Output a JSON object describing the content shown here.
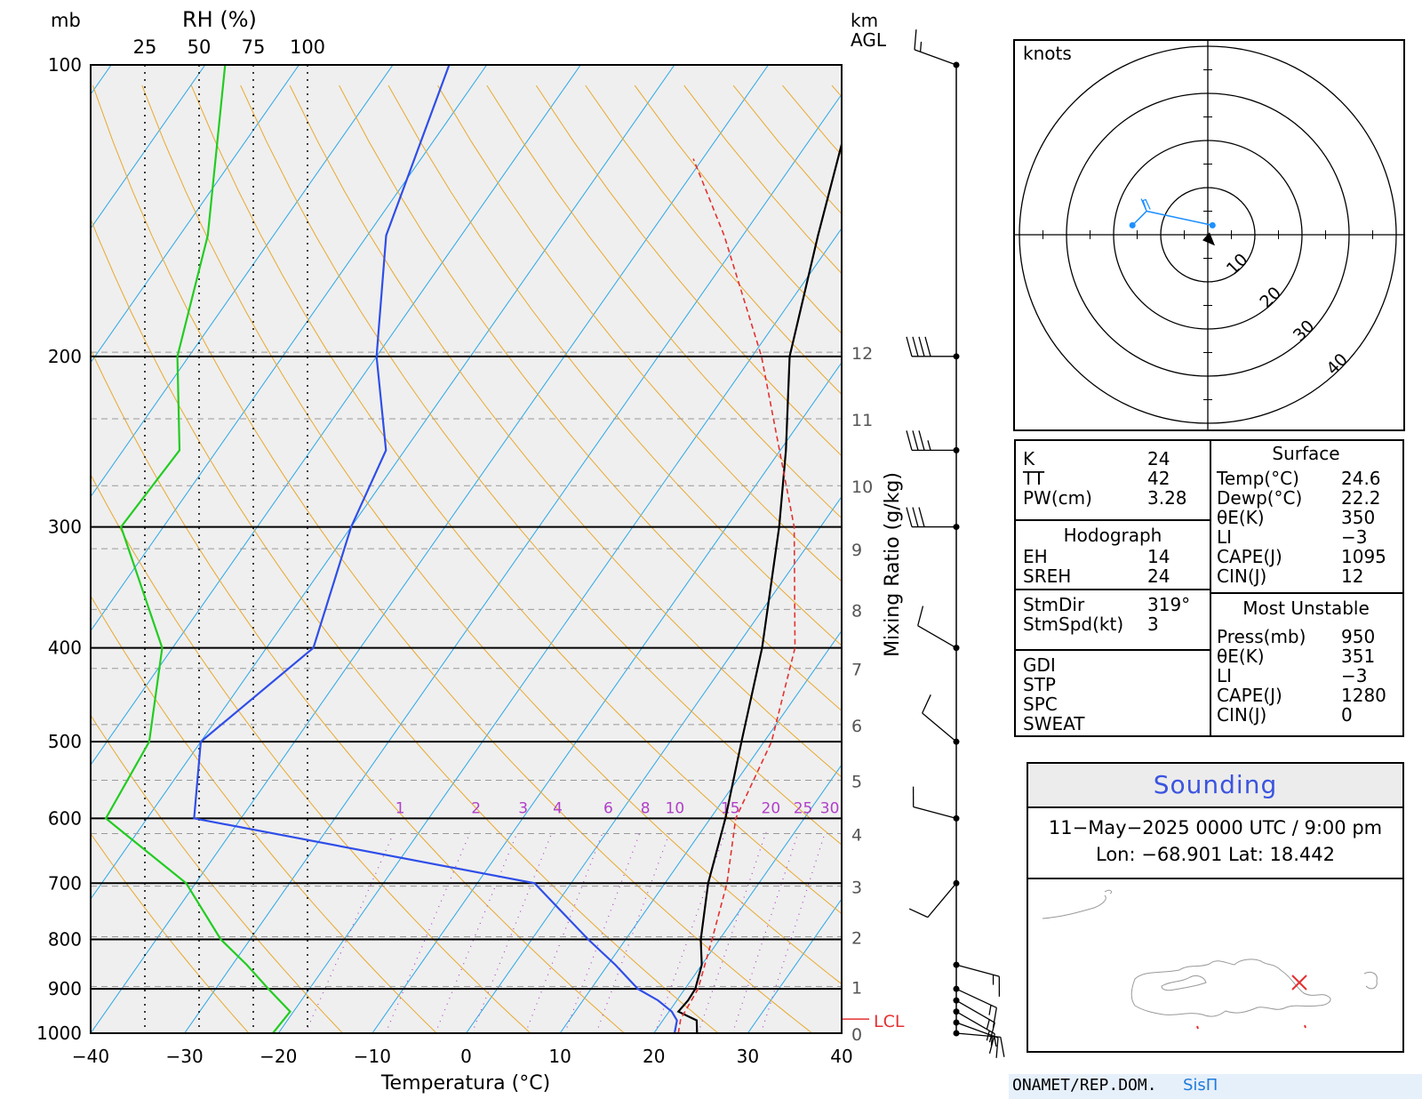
{
  "chart_data": {
    "type": "line",
    "subtype": "skew-T log-P sounding",
    "xlabel": "Temperatura (°C)",
    "ylabel_units": "mb",
    "rh_label": "RH (%)",
    "rh_ticks": [
      "25",
      "50",
      "75",
      "100"
    ],
    "km_label_top": "km",
    "km_label_bottom": "AGL",
    "mixing_ratio_label": "Mixing Ratio (g/kg)",
    "x_ticks": [
      -40,
      -30,
      -20,
      -10,
      0,
      10,
      20,
      30,
      40
    ],
    "xlim": [
      -40,
      40
    ],
    "pressure_levels": [
      100,
      200,
      300,
      400,
      500,
      600,
      700,
      800,
      900,
      1000
    ],
    "ylim_mb": [
      1000,
      100
    ],
    "height_km_labels": [
      "12",
      "11",
      "10",
      "9",
      "8",
      "7",
      "6",
      "5",
      "4",
      "3",
      "2",
      "1",
      "0"
    ],
    "mixing_ratio_values": [
      "1",
      "2",
      "3",
      "4",
      "6",
      "8",
      "10",
      "15",
      "20",
      "25",
      "30"
    ],
    "lcl_label": "LCL",
    "lcl_pressure_mb": 967,
    "series": [
      {
        "key": "temperature",
        "color": "#000000",
        "points": [
          [
            1000,
            24.6
          ],
          [
            970,
            23.6
          ],
          [
            950,
            21.0
          ],
          [
            925,
            21.2
          ],
          [
            900,
            21.1
          ],
          [
            850,
            20.0
          ],
          [
            800,
            18.0
          ],
          [
            700,
            14.6
          ],
          [
            600,
            11.6
          ],
          [
            500,
            7.6
          ],
          [
            400,
            2.8
          ],
          [
            300,
            -4.4
          ],
          [
            250,
            -9.4
          ],
          [
            200,
            -16.0
          ],
          [
            150,
            -22.0
          ],
          [
            100,
            -30.0
          ]
        ]
      },
      {
        "key": "dewpoint",
        "color": "#2f4ee8",
        "points": [
          [
            1000,
            22.2
          ],
          [
            970,
            21.5
          ],
          [
            950,
            20.3
          ],
          [
            925,
            18.0
          ],
          [
            900,
            15.0
          ],
          [
            850,
            10.8
          ],
          [
            800,
            6.0
          ],
          [
            700,
            -3.9
          ],
          [
            600,
            -45.0
          ],
          [
            500,
            -50.0
          ],
          [
            400,
            -45.0
          ],
          [
            300,
            -50.0
          ],
          [
            250,
            -52.0
          ],
          [
            200,
            -60.0
          ],
          [
            150,
            -68.0
          ],
          [
            100,
            -74.0
          ]
        ]
      },
      {
        "key": "rh",
        "color": "#22cc22",
        "units": "%",
        "points": [
          [
            1000,
            84
          ],
          [
            950,
            92
          ],
          [
            900,
            82
          ],
          [
            850,
            72
          ],
          [
            800,
            60
          ],
          [
            700,
            44
          ],
          [
            600,
            7
          ],
          [
            500,
            27
          ],
          [
            400,
            33
          ],
          [
            300,
            14
          ],
          [
            250,
            41
          ],
          [
            200,
            40
          ],
          [
            150,
            54
          ],
          [
            100,
            62
          ]
        ]
      },
      {
        "key": "parcel",
        "color": "#e53030",
        "style": "dashed",
        "points": [
          [
            1000,
            22.6
          ],
          [
            967,
            21.8
          ],
          [
            900,
            21.4
          ],
          [
            800,
            19.2
          ],
          [
            700,
            16.6
          ],
          [
            600,
            12.7
          ],
          [
            500,
            10.8
          ],
          [
            400,
            6.3
          ],
          [
            300,
            -2.8
          ],
          [
            200,
            -19.0
          ],
          [
            150,
            -32.0
          ],
          [
            125,
            -41.0
          ]
        ]
      }
    ],
    "wind_barbs": [
      {
        "p": 100,
        "dir": 290,
        "spd": 15
      },
      {
        "p": 200,
        "dir": 270,
        "spd": 40
      },
      {
        "p": 250,
        "dir": 270,
        "spd": 35
      },
      {
        "p": 300,
        "dir": 270,
        "spd": 30
      },
      {
        "p": 400,
        "dir": 300,
        "spd": 10
      },
      {
        "p": 500,
        "dir": 310,
        "spd": 10
      },
      {
        "p": 600,
        "dir": 285,
        "spd": 10
      },
      {
        "p": 700,
        "dir": 220,
        "spd": 10
      },
      {
        "p": 850,
        "dir": 105,
        "spd": 15
      },
      {
        "p": 900,
        "dir": 115,
        "spd": 15
      },
      {
        "p": 925,
        "dir": 120,
        "spd": 15
      },
      {
        "p": 950,
        "dir": 120,
        "spd": 15
      },
      {
        "p": 975,
        "dir": 110,
        "spd": 15
      },
      {
        "p": 1000,
        "dir": 95,
        "spd": 15
      }
    ],
    "hodograph": {
      "units_label": "knots",
      "ring_labels": [
        "10",
        "20",
        "30",
        "40"
      ],
      "trace_color": "#1e90ff",
      "trace": [
        [
          -16,
          2
        ],
        [
          -14,
          4
        ],
        [
          -13,
          5
        ],
        [
          1,
          2
        ]
      ],
      "storm_motion": {
        "u": 0,
        "v": -1
      }
    }
  },
  "indices": {
    "left": [
      {
        "label": "K",
        "value": "24"
      },
      {
        "label": "TT",
        "value": "42"
      },
      {
        "label": "PW(cm)",
        "value": "3.28"
      }
    ],
    "hodograph_title": "Hodograph",
    "hodograph_rows": [
      {
        "label": "EH",
        "value": "14"
      },
      {
        "label": "SREH",
        "value": "24"
      }
    ],
    "storm_rows": [
      {
        "label": "StmDir",
        "value": "319°"
      },
      {
        "label": "StmSpd(kt)",
        "value": "3"
      }
    ],
    "extra_rows": [
      {
        "label": "GDI",
        "value": ""
      },
      {
        "label": "STP",
        "value": ""
      },
      {
        "label": "SPC",
        "value": ""
      },
      {
        "label": "SWEAT",
        "value": ""
      }
    ],
    "surface_title": "Surface",
    "surface_rows": [
      {
        "label": "Temp(°C)",
        "value": "24.6"
      },
      {
        "label": "Dewp(°C)",
        "value": "22.2"
      },
      {
        "label": "θE(K)",
        "value": "350"
      },
      {
        "label": "LI",
        "value": "−3"
      },
      {
        "label": "CAPE(J)",
        "value": "1095"
      },
      {
        "label": "CIN(J)",
        "value": "12"
      }
    ],
    "mu_title": "Most Unstable",
    "mu_rows": [
      {
        "label": "Press(mb)",
        "value": "950"
      },
      {
        "label": "θE(K)",
        "value": "351"
      },
      {
        "label": "LI",
        "value": "−3"
      },
      {
        "label": "CAPE(J)",
        "value": "1280"
      },
      {
        "label": "CIN(J)",
        "value": "0"
      }
    ]
  },
  "sounding": {
    "title": "Sounding",
    "datetime": "11−May−2025 0000  UTC / 9:00 pm",
    "location": "Lon:  −68.901      Lat: 18.442"
  },
  "footer": {
    "org": "ONAMET/REP.DOM.",
    "brand": "SisΠ"
  },
  "colors": {
    "isotherm": "#2aa7e6",
    "dry_adiabat": "#e8a92e",
    "mixing_ratio": "#b040c8",
    "lcl": "#e53030",
    "plot_bg": "#efefef"
  }
}
